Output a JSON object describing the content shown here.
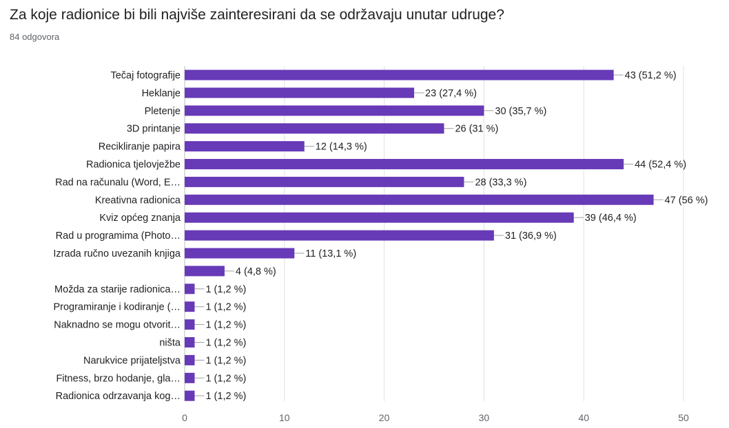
{
  "question": "Za koje radionice bi bili najviše zainteresirani da se održavaju unutar udruge?",
  "response_count": "84 odgovora",
  "colors": {
    "bar": "#673ab7",
    "text": "#202124",
    "muted": "#5f6368",
    "grid": "#e0e0e0"
  },
  "chart_data": {
    "type": "bar",
    "orientation": "horizontal",
    "categories": [
      "Tečaj fotografije",
      "Heklanje",
      "Pletenje",
      "3D printanje",
      "Recikliranje papira",
      "Radionica tjelovježbe",
      "Rad na računalu (Word, E…",
      "Kreativna radionica",
      "Kviz općeg znanja",
      "Rad u programima (Photo…",
      "Izrada ručno uvezanih knjiga",
      "",
      "Možda za starije radionica…",
      "Programiranje i kodiranje (…",
      "Naknadno se mogu otvorit…",
      "ništa",
      "Narukvice prijateljstva",
      "Fitness, brzo hodanje, gla…",
      "Radionica odrzavanja kog…"
    ],
    "values": [
      43,
      23,
      30,
      26,
      12,
      44,
      28,
      47,
      39,
      31,
      11,
      4,
      1,
      1,
      1,
      1,
      1,
      1,
      1
    ],
    "value_labels": [
      "43 (51,2 %)",
      "23 (27,4 %)",
      "30 (35,7 %)",
      "26 (31 %)",
      "12 (14,3 %)",
      "44 (52,4 %)",
      "28 (33,3 %)",
      "47 (56 %)",
      "39 (46,4 %)",
      "31 (36,9 %)",
      "11 (13,1 %)",
      "4 (4,8 %)",
      "1 (1,2 %)",
      "1 (1,2 %)",
      "1 (1,2 %)",
      "1 (1,2 %)",
      "1 (1,2 %)",
      "1 (1,2 %)",
      "1 (1,2 %)"
    ],
    "xticks": [
      0,
      10,
      20,
      30,
      40,
      50
    ],
    "xlim": [
      0,
      50
    ],
    "grid": true
  }
}
